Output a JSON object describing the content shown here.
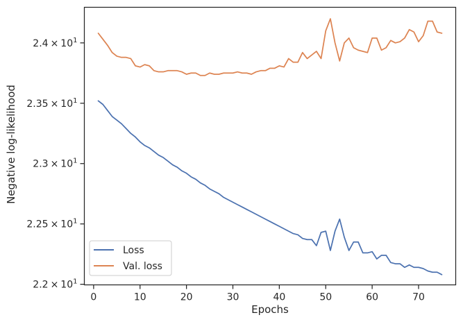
{
  "chart_data": {
    "type": "line",
    "xlabel": "Epochs",
    "ylabel": "Negative log-likelihood",
    "xlim": [
      -2,
      78
    ],
    "ylim": [
      21.995,
      24.295
    ],
    "x_ticks": [
      0,
      10,
      20,
      30,
      40,
      50,
      60,
      70
    ],
    "y_ticks": [
      {
        "value": 22.0,
        "base": "2.2",
        "times": "×",
        "exp_base": "10",
        "exp": "1"
      },
      {
        "value": 22.5,
        "base": "2.25",
        "times": "×",
        "exp_base": "10",
        "exp": "1"
      },
      {
        "value": 23.0,
        "base": "2.3",
        "times": "×",
        "exp_base": "10",
        "exp": "1"
      },
      {
        "value": 23.5,
        "base": "2.35",
        "times": "×",
        "exp_base": "10",
        "exp": "1"
      },
      {
        "value": 24.0,
        "base": "2.4",
        "times": "×",
        "exp_base": "10",
        "exp": "1"
      }
    ],
    "grid": false,
    "legend_position": "lower-left",
    "series": [
      {
        "name": "Loss",
        "color": "#4c72b0",
        "x": [
          1,
          2,
          3,
          4,
          5,
          6,
          7,
          8,
          9,
          10,
          11,
          12,
          13,
          14,
          15,
          16,
          17,
          18,
          19,
          20,
          21,
          22,
          23,
          24,
          25,
          26,
          27,
          28,
          29,
          30,
          31,
          32,
          33,
          34,
          35,
          36,
          37,
          38,
          39,
          40,
          41,
          42,
          43,
          44,
          45,
          46,
          47,
          48,
          49,
          50,
          51,
          52,
          53,
          54,
          55,
          56,
          57,
          58,
          59,
          60,
          61,
          62,
          63,
          64,
          65,
          66,
          67,
          68,
          69,
          70,
          71,
          72,
          73,
          74,
          75
        ],
        "values": [
          23.52,
          23.49,
          23.44,
          23.39,
          23.36,
          23.33,
          23.29,
          23.25,
          23.22,
          23.18,
          23.15,
          23.13,
          23.1,
          23.07,
          23.05,
          23.02,
          22.99,
          22.97,
          22.94,
          22.92,
          22.89,
          22.87,
          22.84,
          22.82,
          22.79,
          22.77,
          22.75,
          22.72,
          22.7,
          22.68,
          22.66,
          22.64,
          22.62,
          22.6,
          22.58,
          22.56,
          22.54,
          22.52,
          22.5,
          22.48,
          22.46,
          22.44,
          22.42,
          22.41,
          22.38,
          22.37,
          22.37,
          22.32,
          22.43,
          22.44,
          22.28,
          22.44,
          22.54,
          22.39,
          22.28,
          22.35,
          22.35,
          22.26,
          22.26,
          22.27,
          22.21,
          22.24,
          22.24,
          22.18,
          22.17,
          22.17,
          22.14,
          22.16,
          22.14,
          22.14,
          22.13,
          22.11,
          22.1,
          22.1,
          22.08
        ]
      },
      {
        "name": "Val. loss",
        "color": "#dd8452",
        "x": [
          1,
          2,
          3,
          4,
          5,
          6,
          7,
          8,
          9,
          10,
          11,
          12,
          13,
          14,
          15,
          16,
          17,
          18,
          19,
          20,
          21,
          22,
          23,
          24,
          25,
          26,
          27,
          28,
          29,
          30,
          31,
          32,
          33,
          34,
          35,
          36,
          37,
          38,
          39,
          40,
          41,
          42,
          43,
          44,
          45,
          46,
          47,
          48,
          49,
          50,
          51,
          52,
          53,
          54,
          55,
          56,
          57,
          58,
          59,
          60,
          61,
          62,
          63,
          64,
          65,
          66,
          67,
          68,
          69,
          70,
          71,
          72,
          73,
          74,
          75
        ],
        "values": [
          24.08,
          24.03,
          23.98,
          23.92,
          23.89,
          23.88,
          23.88,
          23.87,
          23.81,
          23.8,
          23.82,
          23.81,
          23.77,
          23.76,
          23.76,
          23.77,
          23.77,
          23.77,
          23.76,
          23.74,
          23.75,
          23.75,
          23.73,
          23.73,
          23.75,
          23.74,
          23.74,
          23.75,
          23.75,
          23.75,
          23.76,
          23.75,
          23.75,
          23.74,
          23.76,
          23.77,
          23.77,
          23.79,
          23.79,
          23.81,
          23.8,
          23.87,
          23.84,
          23.84,
          23.92,
          23.87,
          23.9,
          23.93,
          23.87,
          24.1,
          24.2,
          24.0,
          23.85,
          24.0,
          24.04,
          23.96,
          23.94,
          23.93,
          23.92,
          24.04,
          24.04,
          23.94,
          23.96,
          24.02,
          24.0,
          24.01,
          24.04,
          24.11,
          24.09,
          24.01,
          24.06,
          24.18,
          24.18,
          24.09,
          24.08
        ]
      }
    ]
  }
}
